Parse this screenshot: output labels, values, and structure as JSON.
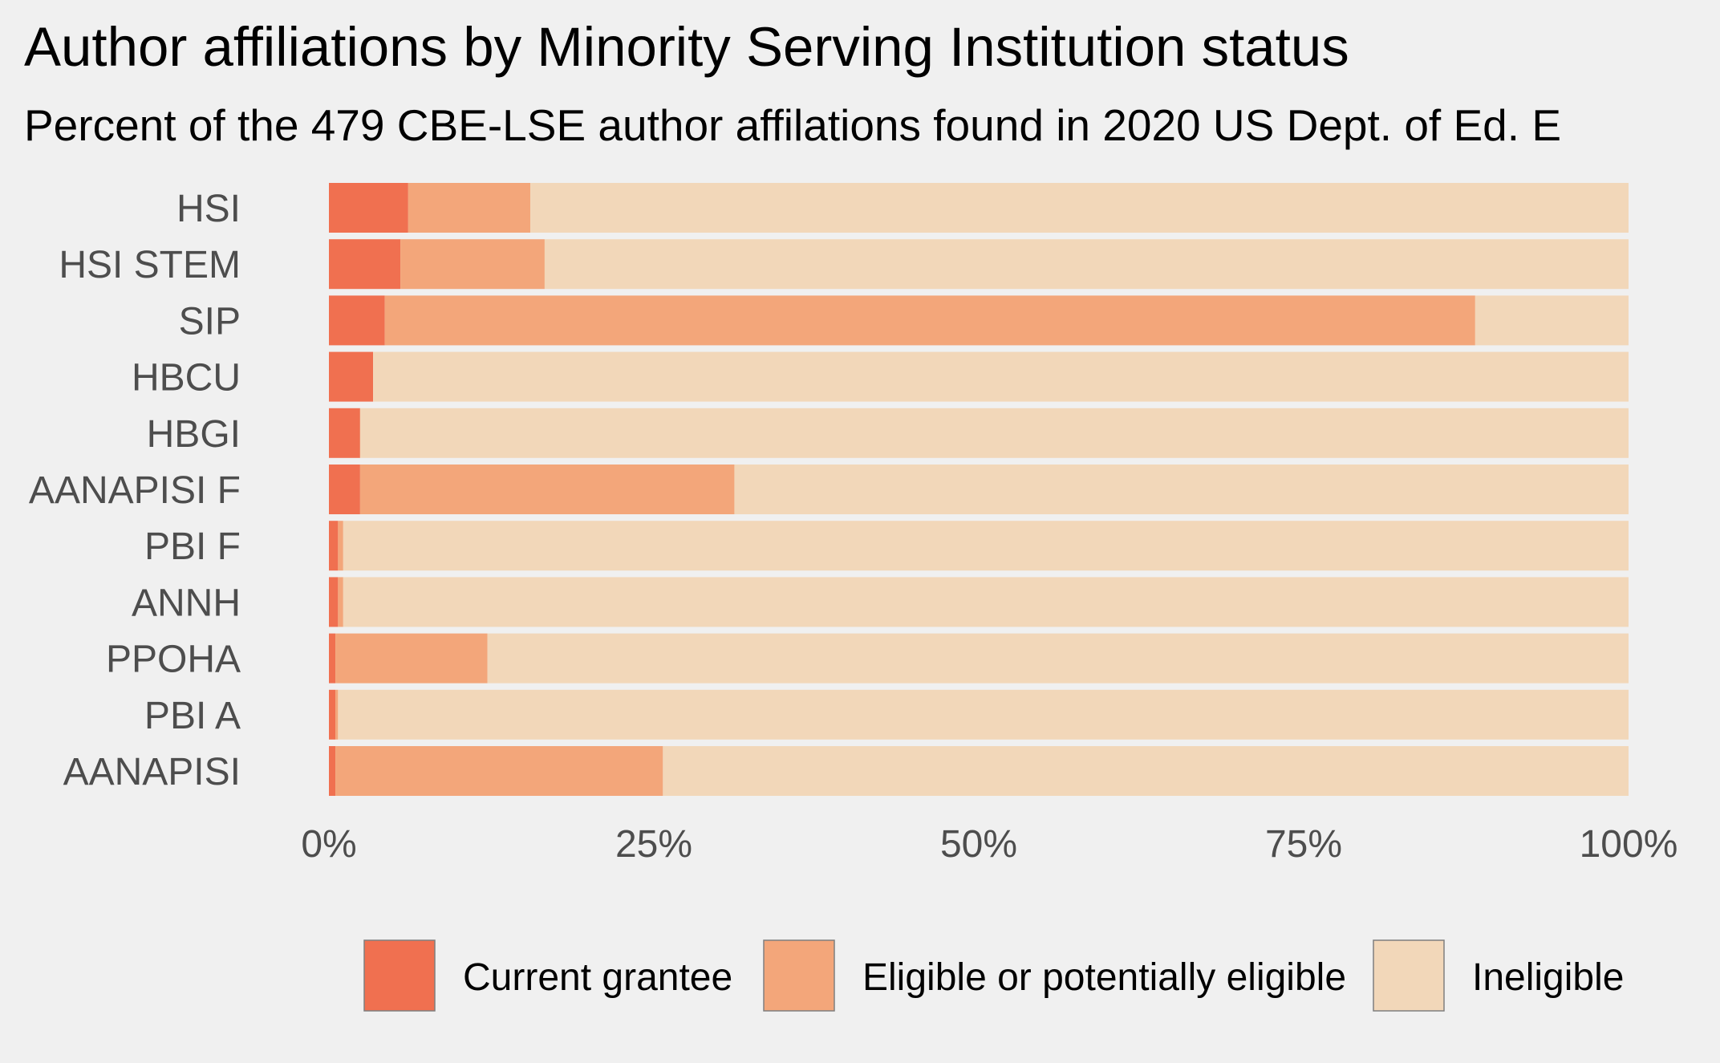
{
  "colors": {
    "background": "#f0f0f0",
    "current_grantee": "#f07050",
    "eligible": "#f3a67a",
    "ineligible": "#f2d7b9",
    "label_text": "#4d4d4d"
  },
  "chart_data": {
    "type": "bar",
    "orientation": "horizontal",
    "stacked": true,
    "title": "Author affiliations by Minority Serving Institution status",
    "subtitle": "Percent of the 479 CBE-LSE author affilations found in 2020 US Dept. of Ed. E",
    "xlabel": "",
    "ylabel": "",
    "xlim": [
      0,
      100
    ],
    "x_ticks": [
      "0%",
      "25%",
      "50%",
      "75%",
      "100%"
    ],
    "grid": false,
    "legend_position": "bottom",
    "categories": [
      "HSI",
      "HSI STEM",
      "SIP",
      "HBCU",
      "HBGI",
      "AANAPISI F",
      "PBI F",
      "ANNH",
      "PPOHA",
      "PBI A",
      "AANAPISI"
    ],
    "series": [
      {
        "name": "Current grantee",
        "color": "#f07050",
        "values": [
          6.1,
          5.5,
          4.3,
          3.4,
          2.4,
          2.4,
          0.7,
          0.7,
          0.5,
          0.5,
          0.5
        ]
      },
      {
        "name": "Eligible or potentially eligible",
        "color": "#f3a67a",
        "values": [
          9.4,
          11.1,
          83.9,
          0,
          0,
          28.8,
          0.4,
          0.4,
          11.7,
          0.2,
          25.2
        ]
      },
      {
        "name": "Ineligible",
        "color": "#f2d7b9",
        "values": [
          84.5,
          83.4,
          11.8,
          96.6,
          97.6,
          68.8,
          98.9,
          98.9,
          87.8,
          99.3,
          74.3
        ]
      }
    ]
  }
}
